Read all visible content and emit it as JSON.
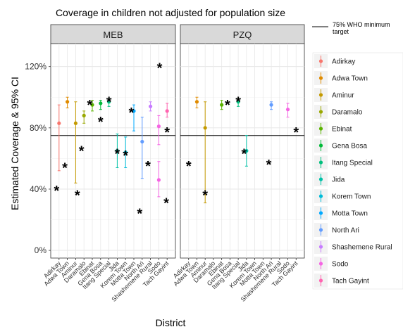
{
  "chart_data": {
    "type": "scatter",
    "title": "Coverage in children not adjusted for population size",
    "xlabel": "District",
    "ylabel": "Estimated Coverage & 95% CI",
    "ylim": [
      -0.05,
      1.35
    ],
    "y_ticks": [
      0,
      0.4,
      0.8,
      1.2
    ],
    "y_tick_labels": [
      "0%",
      "40%",
      "80%",
      "120%"
    ],
    "reference_line": {
      "value": 0.75,
      "label": "75% WHO minimum target"
    },
    "grid": true,
    "legend_position": "right",
    "categories": [
      "Adirkay",
      "Adwa Town",
      "Aminur",
      "Daramalo",
      "Ebinat",
      "Gena Bosa",
      "Itang Special",
      "Jida",
      "Korem Town",
      "Motta Town",
      "North Ari",
      "Shashemene Rural",
      "Sodo",
      "Tach Gayint"
    ],
    "colors": [
      "#F8766D",
      "#E08B00",
      "#C49A00",
      "#99A800",
      "#5BB300",
      "#00BA38",
      "#00BF7D",
      "#00C1A7",
      "#00BCD8",
      "#00A9FF",
      "#619CFF",
      "#C77CFF",
      "#F564E3",
      "#FF64B0"
    ],
    "panels": [
      {
        "name": "MEB",
        "estimates": [
          0.83,
          0.97,
          0.83,
          0.88,
          0.95,
          0.96,
          0.97,
          0.65,
          0.64,
          0.91,
          0.71,
          0.94,
          0.46,
          0.81,
          0.91
        ],
        "ci_low": [
          0.52,
          0.93,
          0.44,
          0.83,
          0.91,
          0.92,
          0.94,
          0.54,
          0.54,
          0.78,
          0.47,
          0.91,
          0.35,
          0.69,
          0.87
        ],
        "ci_high": [
          0.95,
          1.0,
          0.97,
          0.91,
          0.98,
          0.98,
          0.99,
          0.76,
          0.74,
          0.95,
          0.87,
          0.97,
          0.58,
          0.88,
          0.96
        ],
        "point_districts": [
          0,
          1,
          2,
          3,
          4,
          5,
          6,
          7,
          8,
          9,
          10,
          11,
          12,
          12,
          13
        ],
        "markers": [
          {
            "district": 0,
            "x_offset": -0.3,
            "y": 0.4
          },
          {
            "district": 1,
            "x_offset": -0.3,
            "y": 0.55
          },
          {
            "district": 2,
            "x_offset": 0.2,
            "y": 0.37
          },
          {
            "district": 3,
            "x_offset": -0.3,
            "y": 0.66
          },
          {
            "district": 4,
            "x_offset": -0.3,
            "y": 0.96
          },
          {
            "district": 5,
            "x_offset": 0.0,
            "y": 0.85
          },
          {
            "district": 6,
            "x_offset": 0.0,
            "y": 0.98
          },
          {
            "district": 7,
            "x_offset": 0.0,
            "y": 0.64
          },
          {
            "district": 8,
            "x_offset": 0.0,
            "y": 0.63
          },
          {
            "district": 9,
            "x_offset": -0.3,
            "y": 0.91
          },
          {
            "district": 10,
            "x_offset": -0.3,
            "y": 0.25
          },
          {
            "district": 11,
            "x_offset": -0.3,
            "y": 0.56
          },
          {
            "district": 12,
            "x_offset": 0.1,
            "y": 1.2
          },
          {
            "district": 12,
            "x_offset": 0.9,
            "y": 0.32
          },
          {
            "district": 13,
            "x_offset": 0.0,
            "y": 0.78
          }
        ]
      },
      {
        "name": "PZQ",
        "estimates": [
          0.97,
          0.8,
          0.95,
          0.97,
          0.65,
          0.95,
          0.92
        ],
        "ci_low": [
          0.93,
          0.31,
          0.92,
          0.94,
          0.55,
          0.92,
          0.87
        ],
        "ci_high": [
          1.0,
          0.97,
          0.98,
          0.99,
          0.75,
          0.97,
          0.96
        ],
        "point_districts": [
          1,
          2,
          4,
          6,
          7,
          10,
          12
        ],
        "markers": [
          {
            "district": 0,
            "x_offset": 0.0,
            "y": 0.56
          },
          {
            "district": 2,
            "x_offset": 0.0,
            "y": 0.37
          },
          {
            "district": 5,
            "x_offset": -0.3,
            "y": 0.96
          },
          {
            "district": 6,
            "x_offset": 0.0,
            "y": 0.98
          },
          {
            "district": 7,
            "x_offset": -0.3,
            "y": 0.64
          },
          {
            "district": 10,
            "x_offset": -0.3,
            "y": 0.57
          },
          {
            "district": 13,
            "x_offset": 0.0,
            "y": 0.78
          }
        ]
      }
    ]
  }
}
